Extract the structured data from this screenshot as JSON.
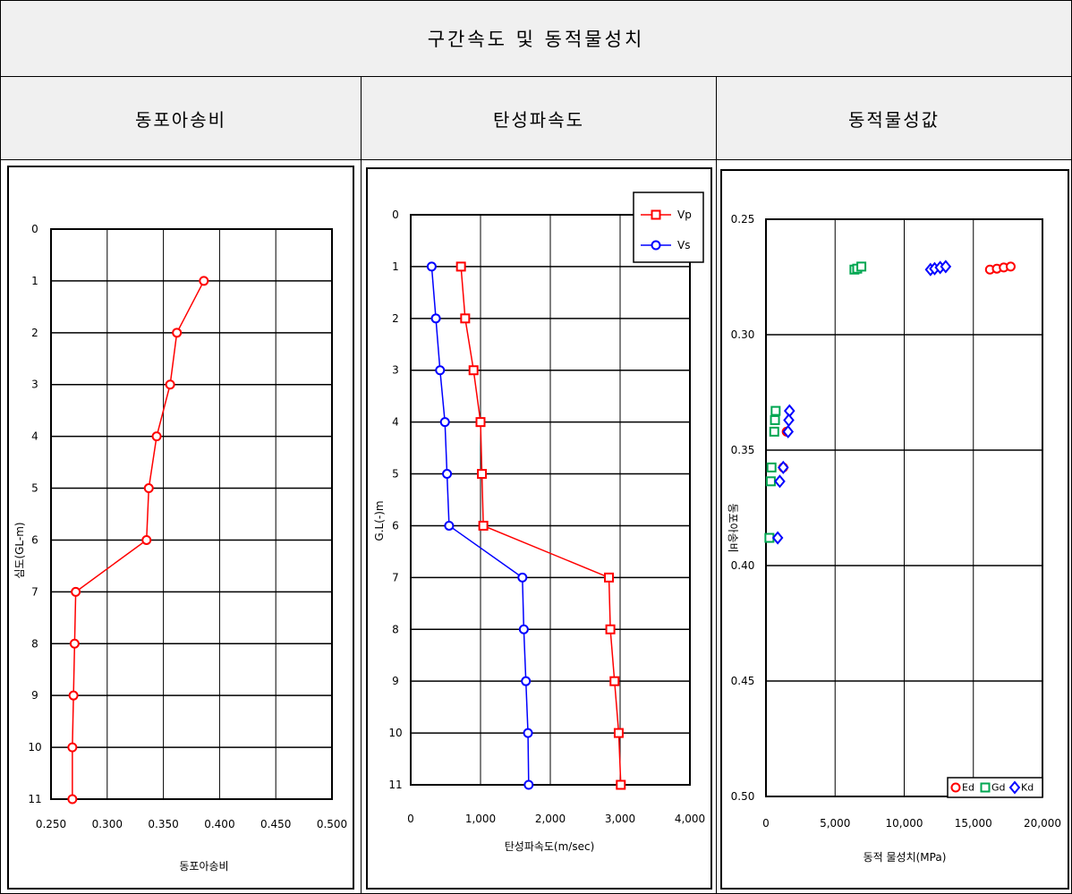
{
  "title": "구간속도 및 동적물성치",
  "headers": [
    "동포아송비",
    "탄성파속도",
    "동적물성값"
  ],
  "charts": {
    "poisson": {
      "xlabel": "동포아송비",
      "ylabel": "심도(GL-m)",
      "x_ticks": [
        "0.250",
        "0.300",
        "0.350",
        "0.400",
        "0.450",
        "0.500"
      ],
      "y_ticks": [
        "0",
        "1",
        "2",
        "3",
        "4",
        "5",
        "6",
        "7",
        "8",
        "9",
        "10",
        "11"
      ]
    },
    "velocity": {
      "xlabel": "탄성파속도(m/sec)",
      "ylabel": "G.L(-)m",
      "x_ticks": [
        "0",
        "1,000",
        "2,000",
        "3,000",
        "4,000"
      ],
      "y_ticks": [
        "0",
        "1",
        "2",
        "3",
        "4",
        "5",
        "6",
        "7",
        "8",
        "9",
        "10",
        "11"
      ],
      "legend": [
        "Vp",
        "Vs"
      ]
    },
    "modulus": {
      "xlabel": "동적 물성치(MPa)",
      "ylabel": "동포아송비",
      "x_ticks": [
        "0",
        "5,000",
        "10,000",
        "15,000",
        "20,000"
      ],
      "y_ticks": [
        "0.25",
        "0.30",
        "0.35",
        "0.40",
        "0.45",
        "0.50"
      ],
      "legend": [
        "Ed",
        "Gd",
        "Kd"
      ]
    }
  },
  "chart_data": [
    {
      "type": "line",
      "x_axis": "동포아송비",
      "y_axis": "심도(GL-m)",
      "xlim": [
        0.25,
        0.5
      ],
      "ylim": [
        0,
        11
      ],
      "y_inverted": true,
      "grid": true,
      "series": [
        {
          "x": [
            0.386,
            0.362,
            0.356,
            0.344,
            0.337,
            0.335,
            0.272,
            0.271,
            0.27,
            0.269,
            0.269
          ],
          "y": [
            1,
            2,
            3,
            4,
            5,
            6,
            7,
            8,
            9,
            10,
            11
          ],
          "color": "#ff0000",
          "marker": "circle"
        }
      ]
    },
    {
      "type": "line",
      "x_axis": "탄성파속도(m/sec)",
      "y_axis": "G.L(-)m",
      "xlim": [
        0,
        4000
      ],
      "ylim": [
        0,
        11
      ],
      "y_inverted": true,
      "grid": true,
      "legend_position": "top-right",
      "series": [
        {
          "name": "Vp",
          "x": [
            720,
            780,
            900,
            1000,
            1020,
            1040,
            2840,
            2860,
            2920,
            2980,
            3010
          ],
          "y": [
            1,
            2,
            3,
            4,
            5,
            6,
            7,
            8,
            9,
            10,
            11
          ],
          "color": "#ff0000",
          "marker": "square"
        },
        {
          "name": "Vs",
          "x": [
            300,
            360,
            420,
            490,
            520,
            550,
            1600,
            1620,
            1650,
            1680,
            1690
          ],
          "y": [
            1,
            2,
            3,
            4,
            5,
            6,
            7,
            8,
            9,
            10,
            11
          ],
          "color": "#0000ff",
          "marker": "circle"
        }
      ]
    },
    {
      "type": "scatter",
      "x_axis": "동적 물성치(MPa)",
      "y_axis": "동포아송비",
      "xlim": [
        0,
        20000
      ],
      "ylim": [
        0.25,
        0.5
      ],
      "y_inverted": true,
      "grid": true,
      "legend_position": "bottom-right",
      "series": [
        {
          "name": "Ed",
          "marker": "circle",
          "color": "#ff0000",
          "points": [
            [
              16200,
              0.2718
            ],
            [
              16700,
              0.2714
            ],
            [
              17200,
              0.2709
            ],
            [
              17700,
              0.2705
            ],
            [
              1500,
              0.342
            ],
            [
              1250,
              0.3575
            ]
          ]
        },
        {
          "name": "Gd",
          "marker": "square",
          "color": "#00a651",
          "points": [
            [
              6400,
              0.2718
            ],
            [
              6600,
              0.2714
            ],
            [
              6900,
              0.2705
            ],
            [
              700,
              0.333
            ],
            [
              650,
              0.337
            ],
            [
              600,
              0.342
            ],
            [
              400,
              0.3575
            ],
            [
              350,
              0.3635
            ],
            [
              250,
              0.388
            ]
          ]
        },
        {
          "name": "Kd",
          "marker": "diamond",
          "color": "#0000ff",
          "points": [
            [
              11900,
              0.2718
            ],
            [
              12200,
              0.2714
            ],
            [
              12600,
              0.2709
            ],
            [
              13000,
              0.2705
            ],
            [
              1700,
              0.333
            ],
            [
              1650,
              0.337
            ],
            [
              1600,
              0.342
            ],
            [
              1250,
              0.3575
            ],
            [
              1000,
              0.3635
            ],
            [
              850,
              0.388
            ]
          ]
        }
      ]
    }
  ]
}
